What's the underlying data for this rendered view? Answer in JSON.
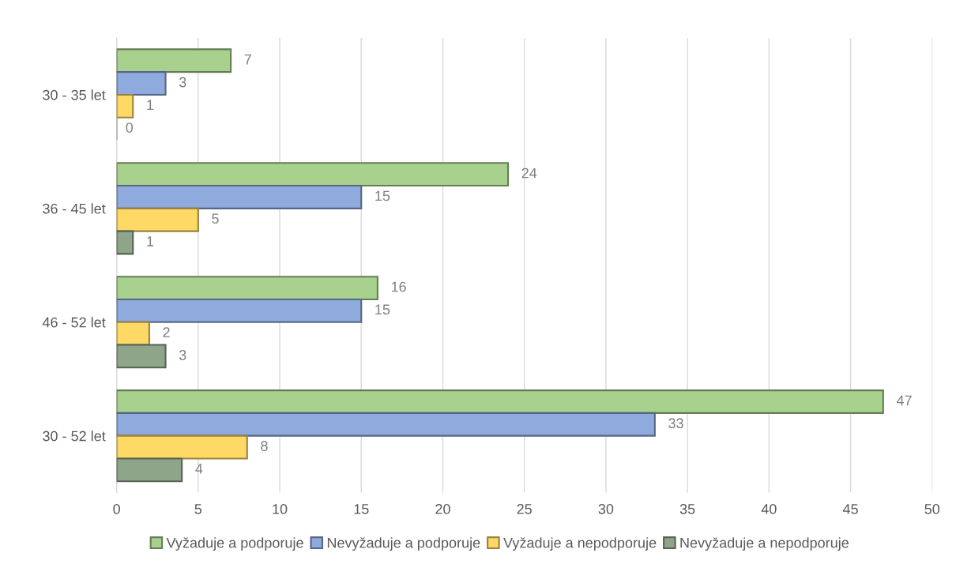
{
  "chart_data": {
    "type": "bar",
    "orientation": "horizontal",
    "categories": [
      "30 - 35 let",
      "36 - 45 let",
      "46 - 52 let",
      "30 - 52 let"
    ],
    "series": [
      {
        "name": "Vyžaduje a podporuje",
        "color": "#a9d18e",
        "values": [
          7,
          24,
          16,
          47
        ]
      },
      {
        "name": "Nevyžaduje a podporuje",
        "color": "#8faadc",
        "values": [
          3,
          15,
          15,
          33
        ]
      },
      {
        "name": "Vyžaduje a nepodporuje",
        "color": "#ffd966",
        "values": [
          1,
          5,
          2,
          8
        ]
      },
      {
        "name": "Nevyžaduje a nepodporuje",
        "color": "#8fa58a",
        "values": [
          0,
          1,
          3,
          4
        ]
      }
    ],
    "xlim": [
      0,
      50
    ],
    "xticks": [
      0,
      5,
      10,
      15,
      20,
      25,
      30,
      35,
      40,
      45,
      50
    ],
    "grid": "x",
    "legend": "bottom",
    "data_labels": true
  }
}
